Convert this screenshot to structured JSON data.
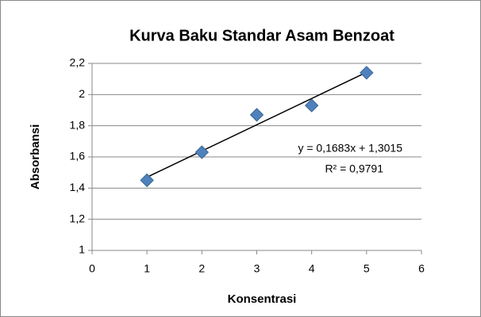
{
  "chart_data": {
    "type": "scatter",
    "title": "Kurva Baku Standar Asam Benzoat",
    "x_label": "Konsentrasi",
    "y_label": "Absorbansi",
    "series": [
      {
        "name": "Absorbansi",
        "color": "#4f81bd",
        "x": [
          1,
          2,
          3,
          4,
          5
        ],
        "values": [
          1.45,
          1.63,
          1.87,
          1.93,
          2.14
        ]
      }
    ],
    "xlim": [
      0,
      6
    ],
    "xticks": [
      0,
      1,
      2,
      3,
      4,
      5,
      6
    ],
    "ylim": [
      1,
      2.2
    ],
    "yticks": [
      1,
      {
        "value": 1.2,
        "label": "1,2"
      },
      {
        "value": 1.4,
        "label": "1,4"
      },
      {
        "value": 1.6,
        "label": "1,6"
      },
      {
        "value": 1.8,
        "label": "1,8"
      },
      2,
      {
        "value": 2.2,
        "label": "2,2"
      }
    ],
    "grid": true,
    "trendline": {
      "slope": 0.1683,
      "intercept": 1.3015,
      "label": "y = 0,1683x + 1,3015",
      "r2_label": "R² = 0,9791"
    }
  }
}
